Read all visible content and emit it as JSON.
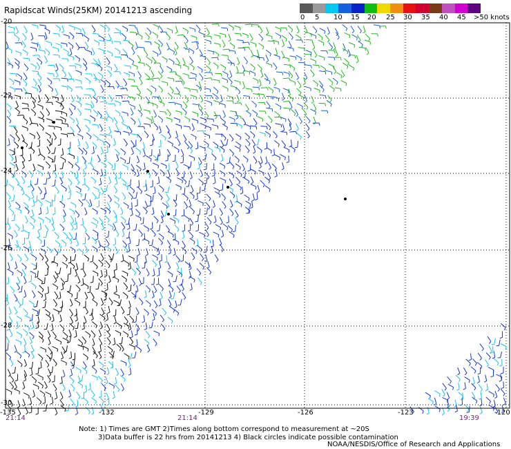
{
  "title": "Rapidscat Winds(25KM) 20141213 ascending",
  "scale": {
    "colors": [
      "#595959",
      "#9a9a9a",
      "#00c8f0",
      "#1460e0",
      "#0a20c8",
      "#10c010",
      "#f0d800",
      "#f09010",
      "#e81010",
      "#d00030",
      "#7a3a18",
      "#c050c0",
      "#d000d0",
      "#5a0080"
    ],
    "labels": [
      "0",
      "5",
      "10",
      "15",
      "20",
      "25",
      "30",
      "35",
      "40",
      "45",
      ">50 knots"
    ]
  },
  "y_axis_labels": [
    "-20",
    "-22",
    "-24",
    "-26",
    "-28",
    "-30"
  ],
  "x_axis_labels": [
    "-135",
    "-132",
    "-129",
    "-126",
    "-123",
    "-120"
  ],
  "time_labels": [
    "21:14",
    "21:14",
    "19:39"
  ],
  "notes": [
    "Note: 1) Times are GMT 2)Times along bottom correspond to measurement at ~20S",
    "3)Data buffer is 22 hrs from 20141213 4) Black circles indicate possible contamination"
  ],
  "credit": "NOAA/NESDIS/Office of Research and Applications"
}
